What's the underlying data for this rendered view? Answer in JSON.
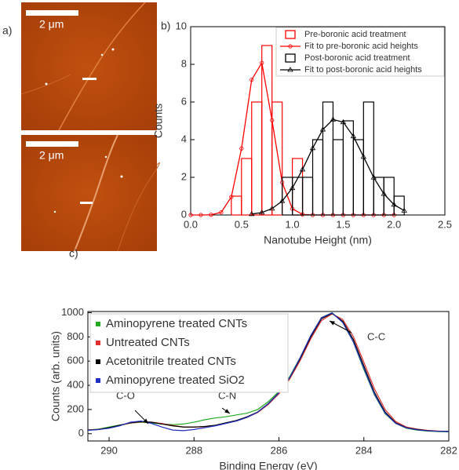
{
  "panel_a": {
    "label": "a)",
    "images": [
      {
        "scale_bar": "2 μm"
      },
      {
        "scale_bar": "2 μm"
      }
    ]
  },
  "chart_data": [
    {
      "type": "histogram",
      "label": "b)",
      "xlabel": "Nanotube Height (nm)",
      "ylabel": "Counts",
      "xlim": [
        0,
        2.5
      ],
      "xticks": [
        {
          "value": 0,
          "label": "0.0"
        },
        0.5,
        {
          "value": 1,
          "label": "1.0"
        },
        1.5,
        {
          "value": 2,
          "label": "2.0"
        },
        2.5
      ],
      "ylim": [
        0,
        10
      ],
      "yticks": [
        0,
        2,
        4,
        6,
        8,
        10
      ],
      "legend": "upper right",
      "series": [
        {
          "name": "Pre-boronic acid treatment",
          "color": "#ff0000",
          "bins": [
            0.4,
            0.5,
            0.6,
            0.7,
            0.8,
            0.9,
            1.0,
            1.1
          ],
          "counts": [
            1,
            3,
            6,
            9,
            6,
            0,
            3
          ]
        },
        {
          "name": "Fit to pre-boronic acid heights",
          "color": "#ff0000",
          "marker": "circle",
          "x": [
            0,
            0.1,
            0.2,
            0.3,
            0.4,
            0.5,
            0.6,
            0.7,
            0.8,
            0.9,
            1.0,
            1.1,
            1.2,
            1.3,
            1.4,
            1.5,
            1.6,
            1.7,
            1.8,
            1.9,
            2.0
          ],
          "values": [
            0,
            0,
            0.01,
            0.14,
            0.96,
            3.53,
            7.18,
            8.08,
            5.03,
            1.73,
            0.33,
            0.03,
            0,
            0,
            0,
            0,
            0,
            0,
            0,
            0,
            0
          ]
        },
        {
          "name": "Post-boronic acid treatment",
          "color": "#000000",
          "bins": [
            0.9,
            1.0,
            1.1,
            1.2,
            1.3,
            1.4,
            1.5,
            1.6,
            1.7,
            1.8,
            1.9,
            2.0,
            2.1
          ],
          "counts": [
            2,
            2,
            2,
            4,
            6,
            4,
            5,
            4,
            6,
            2,
            2,
            1
          ]
        },
        {
          "name": "Fit to post-boronic acid heights",
          "color": "#000000",
          "marker": "triangle",
          "x": [
            0.6,
            0.7,
            0.8,
            0.9,
            1.0,
            1.1,
            1.2,
            1.3,
            1.4,
            1.5,
            1.6,
            1.7,
            1.8,
            1.9,
            2.0,
            2.1
          ],
          "values": [
            0.05,
            0.13,
            0.34,
            0.74,
            1.43,
            2.42,
            3.55,
            4.54,
            5.07,
            4.93,
            4.18,
            3.09,
            1.99,
            1.12,
            0.55,
            0.23
          ]
        }
      ]
    },
    {
      "type": "line",
      "label": "c)",
      "xlabel": "Binding Energy (eV)",
      "ylabel": "Counts (arb. units)",
      "xlim": [
        290.5,
        282
      ],
      "xticks": [
        290,
        288,
        286,
        284,
        282
      ],
      "ylim": [
        -60,
        1010
      ],
      "yticks": [
        0,
        200,
        400,
        600,
        800,
        1000
      ],
      "legend": "upper left",
      "x": [
        290.5,
        290.25,
        290,
        289.75,
        289.5,
        289.25,
        289,
        288.75,
        288.5,
        288.25,
        288,
        287.75,
        287.5,
        287.25,
        287,
        286.75,
        286.5,
        286.25,
        286,
        285.75,
        285.5,
        285.25,
        285,
        284.75,
        284.5,
        284.25,
        284,
        283.75,
        283.5,
        283.25,
        283,
        282.75,
        282.5,
        282.25,
        282
      ],
      "series": [
        {
          "name": "Aminopyrene treated CNTs",
          "color": "#22aa22",
          "values": [
            30,
            38,
            55,
            72,
            88,
            95,
            90,
            80,
            75,
            80,
            95,
            115,
            130,
            140,
            155,
            170,
            200,
            265,
            350,
            470,
            630,
            810,
            960,
            1000,
            925,
            760,
            530,
            320,
            165,
            85,
            45,
            30,
            22,
            18,
            15
          ]
        },
        {
          "name": "Untreated CNTs",
          "color": "#e03030",
          "values": [
            32,
            36,
            48,
            68,
            88,
            98,
            96,
            84,
            68,
            56,
            54,
            58,
            68,
            86,
            106,
            135,
            175,
            242,
            330,
            450,
            605,
            785,
            935,
            990,
            945,
            805,
            590,
            370,
            200,
            100,
            55,
            38,
            28,
            22,
            20
          ]
        },
        {
          "name": "Acetonitrile treated CNTs",
          "color": "#000000",
          "values": [
            30,
            35,
            50,
            70,
            90,
            100,
            95,
            80,
            65,
            55,
            55,
            60,
            70,
            90,
            110,
            140,
            180,
            250,
            340,
            460,
            620,
            800,
            950,
            995,
            930,
            780,
            560,
            340,
            180,
            90,
            50,
            35,
            25,
            20,
            20
          ]
        },
        {
          "name": "Aminopyrene treated SiO2",
          "color": "#2030c0",
          "values": [
            28,
            34,
            45,
            65,
            95,
            105,
            85,
            55,
            30,
            25,
            35,
            50,
            65,
            85,
            105,
            135,
            178,
            248,
            338,
            462,
            628,
            812,
            958,
            998,
            920,
            760,
            540,
            325,
            170,
            85,
            48,
            32,
            24,
            20,
            18
          ]
        }
      ],
      "annotations": [
        {
          "text": "C-O"
        },
        {
          "text": "C-N"
        },
        {
          "text": "C-C"
        }
      ]
    }
  ]
}
